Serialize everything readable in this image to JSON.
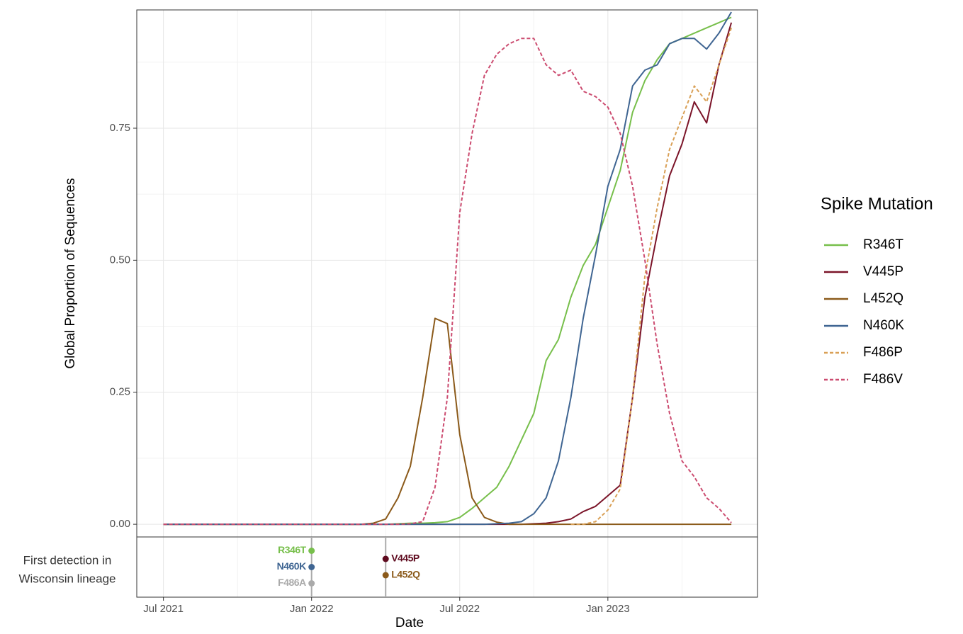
{
  "chart_data": {
    "type": "line",
    "x_label": "Date",
    "y_label": "Global Proportion of Sequences",
    "legend_title": "Spike Mutation",
    "legend": "right",
    "grid": true,
    "xlim": [
      2021.41,
      2023.505
    ],
    "ylim": [
      -0.024,
      0.974
    ],
    "xticks": [
      {
        "value": 2021.5,
        "label": "Jul 2021"
      },
      {
        "value": 2022.0,
        "label": "Jan 2022"
      },
      {
        "value": 2022.5,
        "label": "Jul 2022"
      },
      {
        "value": 2023.0,
        "label": "Jan 2023"
      }
    ],
    "yticks": [
      {
        "value": 0,
        "label": "0.00"
      },
      {
        "value": 0.25,
        "label": "0.25"
      },
      {
        "value": 0.5,
        "label": "0.50"
      },
      {
        "value": 0.75,
        "label": "0.75"
      }
    ],
    "x": [
      2021.5,
      2021.5417,
      2021.5833,
      2021.625,
      2021.6667,
      2021.7083,
      2021.75,
      2021.7917,
      2021.8333,
      2021.875,
      2021.9167,
      2021.9583,
      2022.0,
      2022.0417,
      2022.0833,
      2022.125,
      2022.1667,
      2022.2083,
      2022.25,
      2022.2917,
      2022.3333,
      2022.375,
      2022.4167,
      2022.4583,
      2022.5,
      2022.5417,
      2022.5833,
      2022.625,
      2022.6667,
      2022.7083,
      2022.75,
      2022.7917,
      2022.8333,
      2022.875,
      2022.9167,
      2022.9583,
      2023.0,
      2023.0417,
      2023.0833,
      2023.125,
      2023.1667,
      2023.2083,
      2023.25,
      2023.2917,
      2023.3333,
      2023.375,
      2023.4167
    ],
    "series": [
      {
        "name": "R346T",
        "color": "#77bf4b",
        "linestyle": "solid",
        "values": [
          0,
          0,
          0,
          0,
          0,
          0,
          0,
          0,
          0,
          0,
          0,
          0,
          0,
          0,
          0,
          0,
          0,
          0,
          0,
          0.001,
          0.002,
          0.002,
          0.003,
          0.005,
          0.013,
          0.03,
          0.05,
          0.07,
          0.11,
          0.16,
          0.21,
          0.31,
          0.35,
          0.43,
          0.49,
          0.53,
          0.6,
          0.67,
          0.78,
          0.84,
          0.88,
          0.91,
          0.92,
          0.93,
          0.94,
          0.95,
          0.96
        ]
      },
      {
        "name": "V445P",
        "color": "#7b1429",
        "linestyle": "solid",
        "values": [
          0,
          0,
          0,
          0,
          0,
          0,
          0,
          0,
          0,
          0,
          0,
          0,
          0,
          0,
          0,
          0,
          0,
          0,
          0,
          0,
          0,
          0,
          0,
          0,
          0,
          0,
          0,
          0,
          0,
          0,
          0.001,
          0.002,
          0.005,
          0.01,
          0.024,
          0.034,
          0.054,
          0.074,
          0.24,
          0.43,
          0.55,
          0.66,
          0.72,
          0.8,
          0.76,
          0.87,
          0.95
        ]
      },
      {
        "name": "L452Q",
        "color": "#8b5a1a",
        "linestyle": "solid",
        "values": [
          0,
          0,
          0,
          0,
          0,
          0,
          0,
          0,
          0,
          0,
          0,
          0,
          0,
          0,
          0,
          0,
          0,
          0.002,
          0.01,
          0.05,
          0.11,
          0.24,
          0.39,
          0.38,
          0.17,
          0.05,
          0.013,
          0.004,
          0,
          0,
          0,
          0,
          0,
          0,
          0,
          0,
          0,
          0,
          0,
          0,
          0,
          0,
          0,
          0,
          0,
          0,
          0
        ]
      },
      {
        "name": "N460K",
        "color": "#3f6592",
        "linestyle": "solid",
        "values": [
          0,
          0,
          0,
          0,
          0,
          0,
          0,
          0,
          0,
          0,
          0,
          0,
          0,
          0,
          0,
          0,
          0,
          0,
          0,
          0,
          0,
          0,
          0,
          0,
          0,
          0,
          0,
          0.001,
          0.002,
          0.005,
          0.02,
          0.05,
          0.12,
          0.24,
          0.39,
          0.51,
          0.64,
          0.71,
          0.83,
          0.86,
          0.87,
          0.91,
          0.92,
          0.92,
          0.9,
          0.93,
          0.97
        ]
      },
      {
        "name": "F486P",
        "color": "#d9a056",
        "linestyle": "dashed",
        "values": [
          null,
          null,
          null,
          null,
          null,
          null,
          null,
          null,
          null,
          null,
          null,
          null,
          null,
          null,
          null,
          null,
          null,
          null,
          null,
          null,
          null,
          null,
          null,
          null,
          null,
          null,
          null,
          null,
          null,
          null,
          null,
          null,
          null,
          0,
          0,
          0.005,
          0.027,
          0.067,
          0.24,
          0.47,
          0.6,
          0.71,
          0.77,
          0.83,
          0.8,
          0.87,
          0.94
        ]
      },
      {
        "name": "F486V",
        "color": "#cc4c70",
        "linestyle": "dashed",
        "values": [
          0,
          0,
          0,
          0,
          0,
          0,
          0,
          0,
          0,
          0,
          0,
          0,
          0,
          0,
          0,
          0,
          0,
          0,
          0,
          0,
          0.001,
          0.005,
          0.07,
          0.24,
          0.59,
          0.74,
          0.85,
          0.89,
          0.91,
          0.92,
          0.92,
          0.87,
          0.85,
          0.86,
          0.82,
          0.81,
          0.79,
          0.74,
          0.64,
          0.5,
          0.34,
          0.21,
          0.12,
          0.09,
          0.05,
          0.03,
          0.003
        ]
      }
    ],
    "detection_label": [
      "First detection in",
      "Wisconsin lineage"
    ],
    "detections": [
      {
        "label": "R346T",
        "x": 2022.0,
        "color": "#77bf4b"
      },
      {
        "label": "N460K",
        "x": 2022.0,
        "color": "#3f6592"
      },
      {
        "label": "F486A",
        "x": 2022.0,
        "color": "#aaaaaa"
      },
      {
        "label": "V445P",
        "x": 2022.25,
        "color": "#5e0a1e"
      },
      {
        "label": "L452Q",
        "x": 2022.25,
        "color": "#8b5a1a"
      }
    ]
  }
}
